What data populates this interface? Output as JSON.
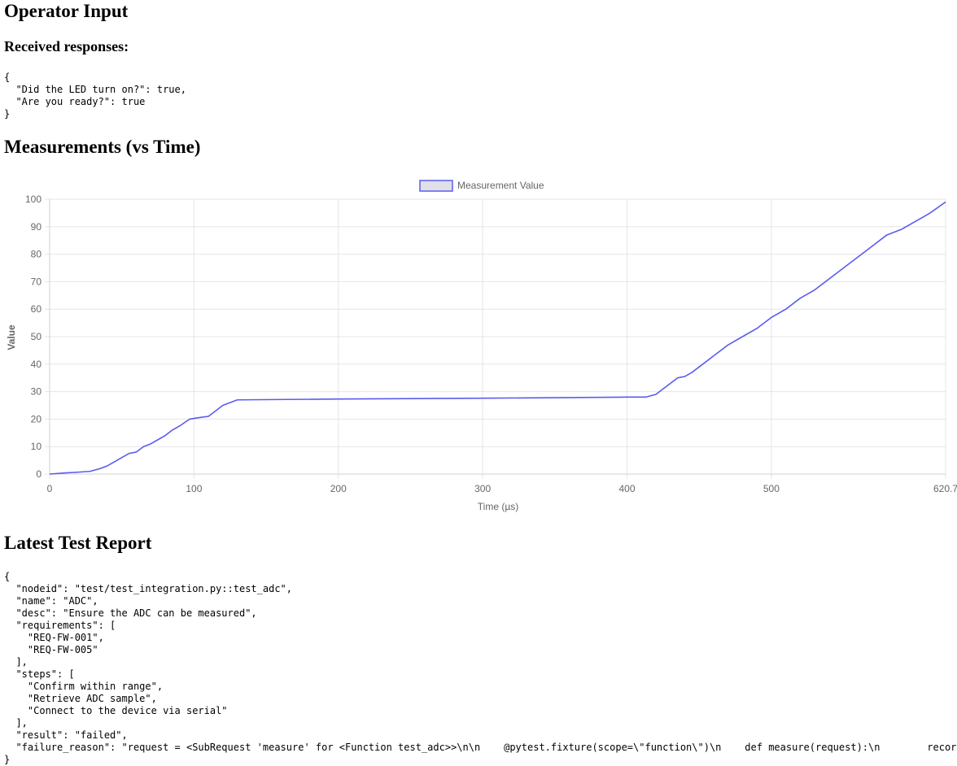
{
  "operator": {
    "title": "Operator Input",
    "responses_heading": "Received responses:",
    "responses_json": "{\n  \"Did the LED turn on?\": true,\n  \"Are you ready?\": true\n}"
  },
  "measurements": {
    "title": "Measurements (vs Time)"
  },
  "chart_data": {
    "type": "line",
    "xlabel": "Time (µs)",
    "ylabel": "Value",
    "xlim": [
      0,
      620.7
    ],
    "ylim": [
      0,
      100
    ],
    "x_ticks": [
      "0",
      "100",
      "200",
      "300",
      "400",
      "500",
      "620.7"
    ],
    "y_ticks": [
      "0",
      "10",
      "20",
      "30",
      "40",
      "50",
      "60",
      "70",
      "80",
      "90",
      "100"
    ],
    "grid": true,
    "legend_position": "top-center",
    "series": [
      {
        "name": "Measurement Value",
        "color": "#5b5bf0",
        "fill": "#e0e0e8",
        "x": [
          0,
          10,
          20,
          28,
          35,
          40,
          45,
          50,
          55,
          60,
          65,
          70,
          75,
          80,
          85,
          90,
          97,
          103,
          110,
          115,
          120,
          125,
          130,
          200,
          300,
          400,
          413,
          420,
          425,
          430,
          435,
          440,
          445,
          450,
          460,
          470,
          480,
          490,
          500,
          510,
          520,
          530,
          540,
          550,
          560,
          570,
          580,
          590,
          600,
          610,
          620.7
        ],
        "y": [
          0,
          0.4,
          0.7,
          1,
          2,
          3,
          4.5,
          6,
          7.5,
          8,
          10,
          11,
          12.5,
          14,
          16,
          17.5,
          20,
          20.5,
          21,
          23,
          25,
          26,
          27,
          27.3,
          27.6,
          28,
          28,
          29,
          31,
          33,
          35,
          35.5,
          37,
          39,
          43,
          47,
          50,
          53,
          57,
          60,
          64,
          67,
          71,
          75,
          79,
          83,
          87,
          89,
          92,
          95,
          99
        ]
      }
    ]
  },
  "report": {
    "title": "Latest Test Report",
    "json_lines": [
      "{",
      "  \"nodeid\": \"test/test_integration.py::test_adc\",",
      "  \"name\": \"ADC\",",
      "  \"desc\": \"Ensure the ADC can be measured\",",
      "  \"requirements\": [",
      "    \"REQ-FW-001\",",
      "    \"REQ-FW-005\"",
      "  ],",
      "  \"steps\": [",
      "    \"Confirm within range\",",
      "    \"Retrieve ADC sample\",",
      "    \"Connect to the device via serial\"",
      "  ],",
      "  \"result\": \"failed\",",
      "  \"failure_reason\": \"request = <SubRequest 'measure' for <Function test_adc>>\\n\\n    @pytest.fixture(scope=\\\"function\\\")\\n    def measure(request):\\n        records",
      "}"
    ]
  }
}
